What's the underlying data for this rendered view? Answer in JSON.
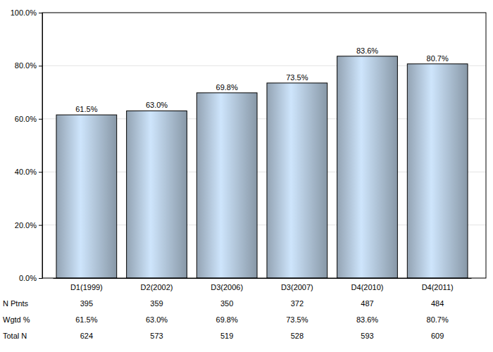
{
  "chart_data": {
    "type": "bar",
    "categories": [
      "D1(1999)",
      "D2(2002)",
      "D3(2006)",
      "D3(2007)",
      "D4(2010)",
      "D4(2011)"
    ],
    "values": [
      61.5,
      63.0,
      69.8,
      73.5,
      83.6,
      80.7
    ],
    "value_labels": [
      "61.5%",
      "63.0%",
      "69.8%",
      "73.5%",
      "83.6%",
      "80.7%"
    ],
    "data_labels": true,
    "color": "#a9bccf",
    "ylim": [
      0,
      100
    ],
    "yticks": [
      {
        "value": 0,
        "label": "0.0%"
      },
      {
        "value": 20,
        "label": "20.0%"
      },
      {
        "value": 40,
        "label": "40.0%"
      },
      {
        "value": 60,
        "label": "60.0%"
      },
      {
        "value": 80,
        "label": "80.0%"
      },
      {
        "value": 100,
        "label": "100.0%"
      }
    ],
    "grid": true
  },
  "table": {
    "rows": [
      {
        "label": "N Ptnts",
        "cells": [
          395,
          359,
          350,
          372,
          487,
          484
        ]
      },
      {
        "label": "Wgtd %",
        "cells": [
          "61.5%",
          "63.0%",
          "69.8%",
          "73.5%",
          "83.6%",
          "80.7%"
        ]
      },
      {
        "label": "Total N",
        "cells": [
          624,
          573,
          519,
          528,
          593,
          609
        ]
      }
    ]
  }
}
